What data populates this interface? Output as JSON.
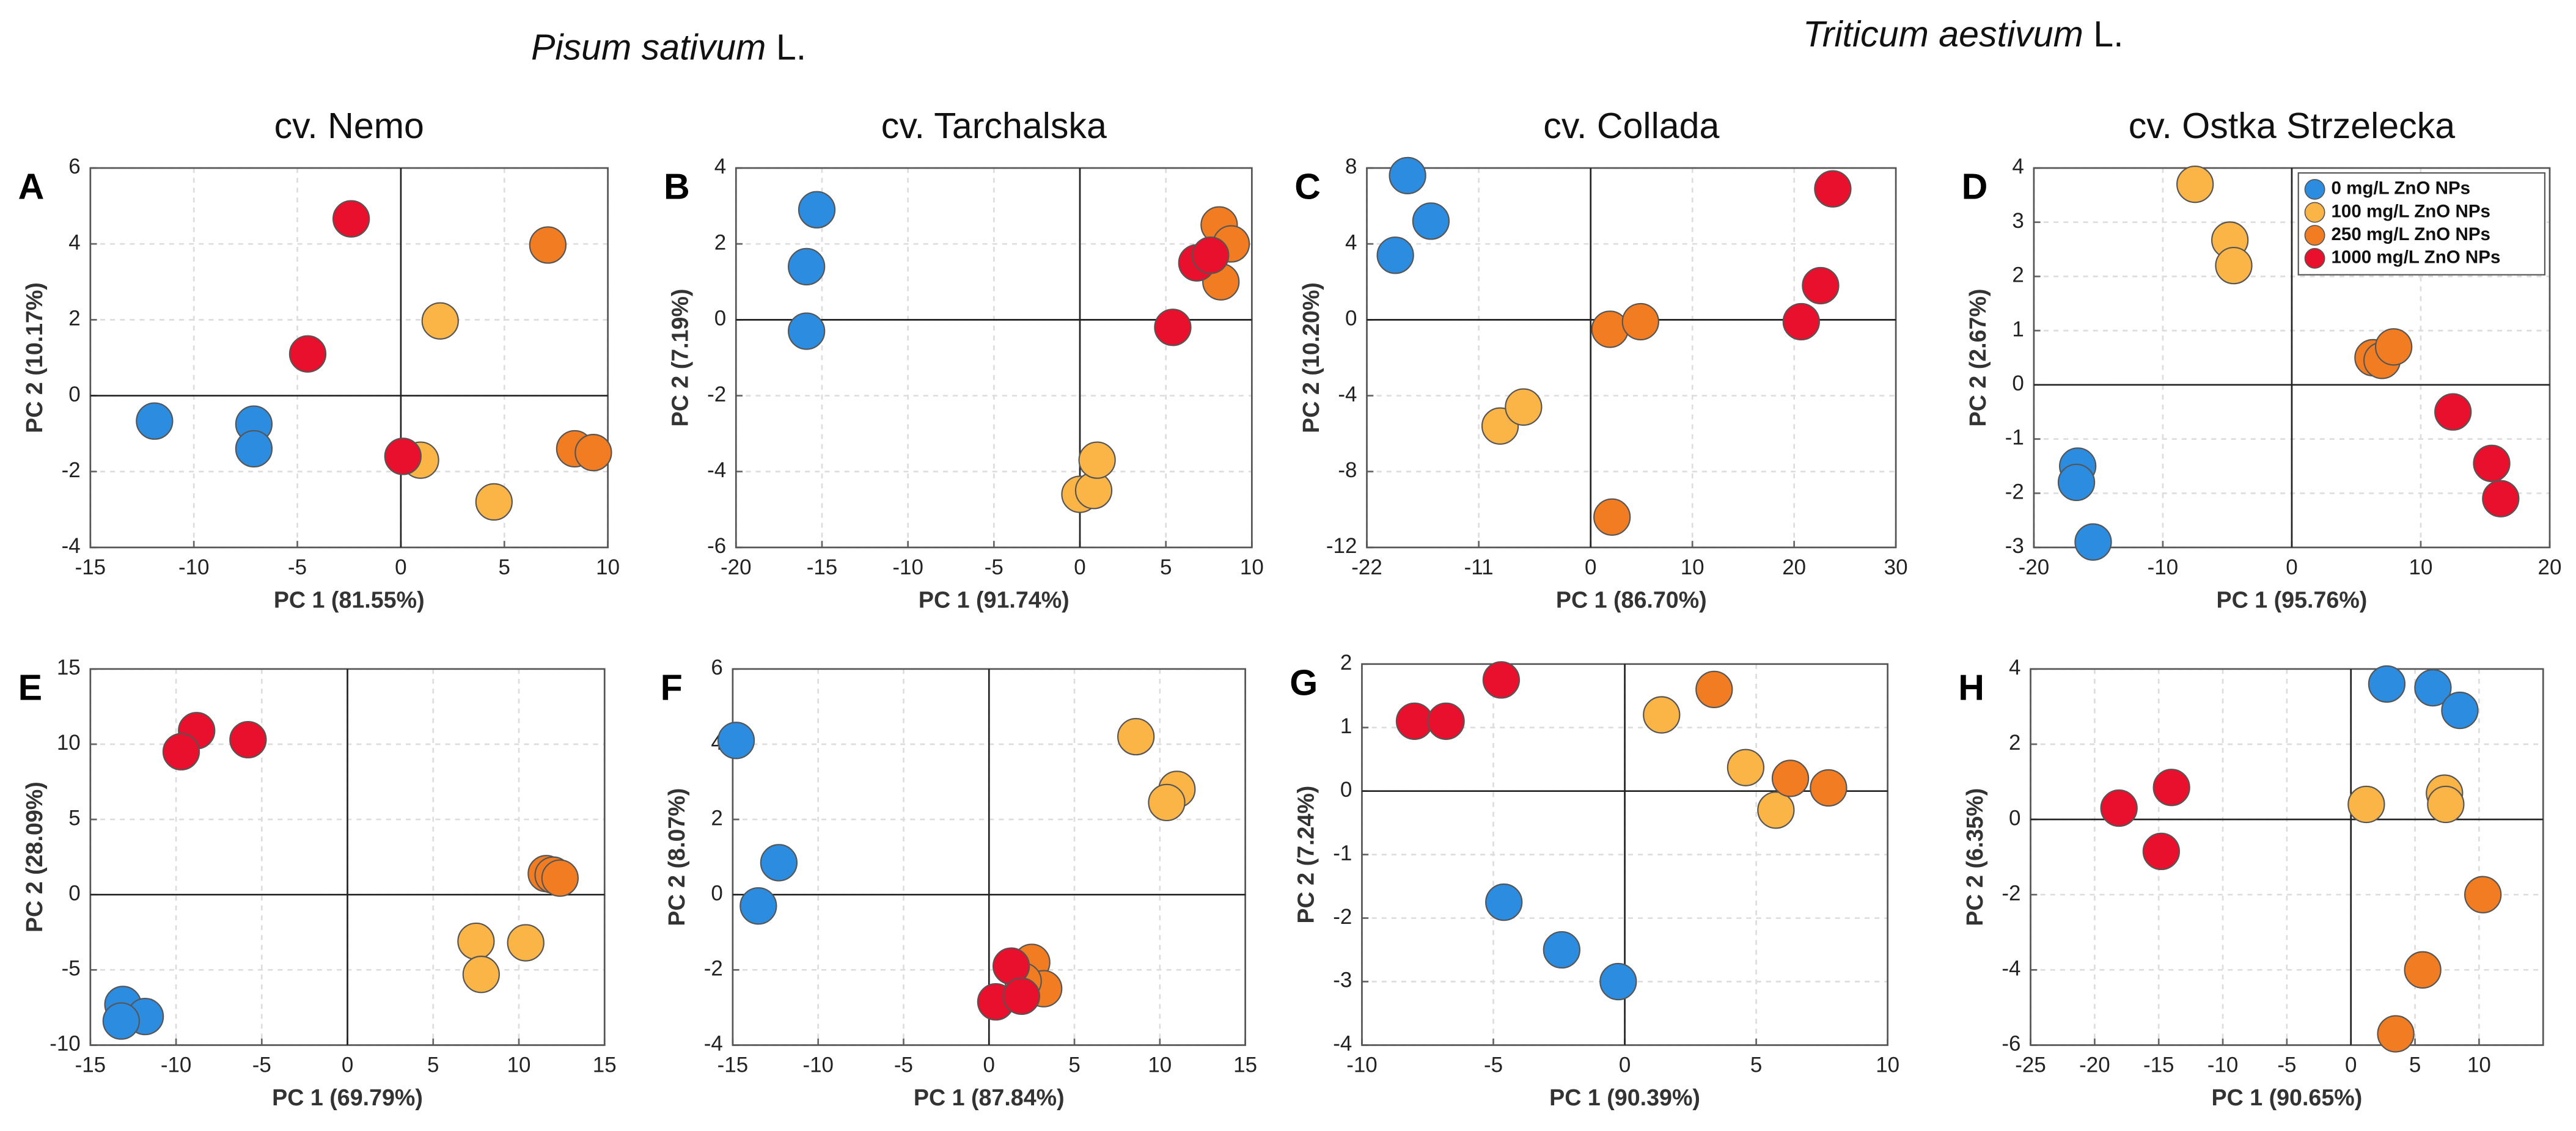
{
  "titles": [
    {
      "species": "Pisum sativum",
      "authority": "L."
    },
    {
      "species": "Triticum aestivum",
      "authority": "L."
    }
  ],
  "chart_data": [
    {
      "type": "scatter",
      "panel": "A",
      "title": "cv. Nemo",
      "xlabel": "PC 1 (81.55%)",
      "ylabel": "PC 2 (10.17%)",
      "xlim": [
        -15,
        10
      ],
      "ylim": [
        -4,
        6
      ],
      "xticks": [
        -15,
        -10,
        -5,
        0,
        5,
        10
      ],
      "yticks": [
        -4,
        -2,
        0,
        2,
        4,
        6
      ],
      "grid": true,
      "series": [
        {
          "color": "#2b8ce0",
          "x": [
            -11.9,
            -7.1,
            -7.1
          ],
          "values": [
            -0.67,
            -0.75,
            -1.4
          ]
        },
        {
          "color": "#fbb446",
          "x": [
            1.9,
            0.95,
            4.5
          ],
          "values": [
            1.97,
            -1.7,
            -2.8
          ]
        },
        {
          "color": "#f27c22",
          "x": [
            7.1,
            8.4,
            9.3
          ],
          "values": [
            3.97,
            -1.4,
            -1.5
          ]
        },
        {
          "color": "#e8102c",
          "x": [
            -2.4,
            -4.5,
            0.1
          ],
          "values": [
            4.66,
            1.1,
            -1.6
          ]
        }
      ]
    },
    {
      "type": "scatter",
      "panel": "B",
      "title": "cv. Tarchalska",
      "xlabel": "PC 1 (91.74%)",
      "ylabel": "PC 2 (7.19%)",
      "xlim": [
        -20,
        10
      ],
      "ylim": [
        -6,
        4
      ],
      "xticks": [
        -20,
        -15,
        -10,
        -5,
        0,
        5,
        10
      ],
      "yticks": [
        -6,
        -4,
        -2,
        0,
        2,
        4
      ],
      "grid": true,
      "series": [
        {
          "color": "#2b8ce0",
          "x": [
            -15.3,
            -15.9,
            -15.9
          ],
          "values": [
            2.9,
            1.4,
            -0.3
          ]
        },
        {
          "color": "#fbb446",
          "x": [
            0,
            0.8,
            1.0
          ],
          "values": [
            -4.6,
            -4.5,
            -3.7
          ]
        },
        {
          "color": "#f27c22",
          "x": [
            8.1,
            8.8,
            8.2
          ],
          "values": [
            2.5,
            2.0,
            1.0
          ]
        },
        {
          "color": "#e8102c",
          "x": [
            6.8,
            7.6,
            5.4
          ],
          "values": [
            1.5,
            1.7,
            -0.2
          ]
        }
      ]
    },
    {
      "type": "scatter",
      "panel": "C",
      "title": "cv. Collada",
      "xlabel": "PC 1 (86.70%)",
      "ylabel": "PC 2 (10.20%)",
      "xlim": [
        -22,
        30
      ],
      "ylim": [
        -12,
        8
      ],
      "xticks": [
        -22,
        -11,
        0,
        10,
        20,
        30
      ],
      "yticks": [
        -12,
        -8,
        -4,
        0,
        4,
        8
      ],
      "grid": true,
      "series": [
        {
          "color": "#2b8ce0",
          "x": [
            -18,
            -15.7,
            -19.2
          ],
          "values": [
            7.6,
            5.2,
            3.4
          ]
        },
        {
          "color": "#fbb446",
          "x": [
            -8.9,
            -6.6
          ],
          "values": [
            -5.6,
            -4.6
          ]
        },
        {
          "color": "#f27c22",
          "x": [
            1.9,
            4.9,
            2.1
          ],
          "values": [
            -0.5,
            -0.1,
            -10.4
          ]
        },
        {
          "color": "#e8102c",
          "x": [
            23.8,
            22.6,
            20.7
          ],
          "values": [
            6.9,
            1.8,
            -0.1
          ]
        }
      ]
    },
    {
      "type": "scatter",
      "panel": "D",
      "title": "cv. Ostka Strzelecka",
      "xlabel": "PC 1 (95.76%)",
      "ylabel": "PC 2 (2.67%)",
      "xlim": [
        -20,
        20
      ],
      "ylim": [
        -3,
        4
      ],
      "xticks": [
        -20,
        -10,
        0,
        10,
        20
      ],
      "yticks": [
        -3,
        -2,
        -1,
        0,
        1,
        2,
        3,
        4
      ],
      "grid": true,
      "legend": "upper right",
      "series": [
        {
          "name": "0 mg/L ZnO NPs",
          "color": "#2b8ce0",
          "x": [
            -16.6,
            -16.7,
            -15.4
          ],
          "values": [
            -1.5,
            -1.8,
            -2.9
          ]
        },
        {
          "name": "100 mg/L ZnO NPs",
          "color": "#fbb446",
          "x": [
            -7.5,
            -4.8,
            -4.5
          ],
          "values": [
            3.7,
            2.67,
            2.2
          ]
        },
        {
          "name": "250 mg/L ZnO NPs",
          "color": "#f27c22",
          "x": [
            6.3,
            7.0,
            7.9
          ],
          "values": [
            0.5,
            0.45,
            0.7
          ]
        },
        {
          "name": "1000 mg/L ZnO NPs",
          "color": "#e8102c",
          "x": [
            12.5,
            15.5,
            16.2
          ],
          "values": [
            -0.5,
            -1.45,
            -2.1
          ]
        }
      ]
    },
    {
      "type": "scatter",
      "panel": "E",
      "xlabel": "PC 1 (69.79%)",
      "ylabel": "PC 2 (28.09%)",
      "xlim": [
        -15,
        15
      ],
      "ylim": [
        -10,
        15
      ],
      "xticks": [
        -15,
        -10,
        -5,
        0,
        5,
        10,
        15
      ],
      "yticks": [
        -10,
        -5,
        0,
        5,
        10,
        15
      ],
      "grid": true,
      "series": [
        {
          "color": "#2b8ce0",
          "x": [
            -13.1,
            -11.8,
            -13.2
          ],
          "values": [
            -7.3,
            -8.1,
            -8.4
          ]
        },
        {
          "color": "#fbb446",
          "x": [
            7.5,
            10.4,
            7.8
          ],
          "values": [
            -3.1,
            -3.2,
            -5.3
          ]
        },
        {
          "color": "#f27c22",
          "x": [
            11.6,
            12.0,
            12.4
          ],
          "values": [
            1.4,
            1.3,
            1.1
          ]
        },
        {
          "color": "#e8102c",
          "x": [
            -8.8,
            -9.7,
            -5.8
          ],
          "values": [
            10.9,
            9.5,
            10.3
          ]
        }
      ]
    },
    {
      "type": "scatter",
      "panel": "F",
      "xlabel": "PC 1 (87.84%)",
      "ylabel": "PC 2 (8.07%)",
      "xlim": [
        -15,
        15
      ],
      "ylim": [
        -4,
        6
      ],
      "xticks": [
        -15,
        -10,
        -5,
        0,
        5,
        10,
        15
      ],
      "yticks": [
        -4,
        -2,
        0,
        2,
        4,
        6
      ],
      "grid": true,
      "series": [
        {
          "color": "#2b8ce0",
          "x": [
            -14.8,
            -12.3,
            -13.5
          ],
          "values": [
            4.1,
            0.85,
            -0.3
          ]
        },
        {
          "color": "#fbb446",
          "x": [
            8.6,
            11.0,
            10.4
          ],
          "values": [
            4.2,
            2.8,
            2.45
          ]
        },
        {
          "color": "#f27c22",
          "x": [
            2.5,
            3.2,
            2.0
          ],
          "values": [
            -1.8,
            -2.5,
            -2.3
          ]
        },
        {
          "color": "#e8102c",
          "x": [
            1.3,
            0.4,
            1.9
          ],
          "values": [
            -1.9,
            -2.85,
            -2.7
          ]
        }
      ]
    },
    {
      "type": "scatter",
      "panel": "G",
      "xlabel": "PC 1 (90.39%)",
      "ylabel": "PC 2 (7.24%)",
      "xlim": [
        -10,
        10
      ],
      "ylim": [
        -4,
        2
      ],
      "xticks": [
        -10,
        -5,
        0,
        5,
        10
      ],
      "yticks": [
        -4,
        -3,
        -2,
        -1,
        0,
        1,
        2
      ],
      "grid": true,
      "series": [
        {
          "color": "#2b8ce0",
          "x": [
            -4.6,
            -2.4,
            -0.25
          ],
          "values": [
            -1.75,
            -2.5,
            -3.0
          ]
        },
        {
          "color": "#fbb446",
          "x": [
            1.4,
            4.6,
            5.75
          ],
          "values": [
            1.2,
            0.37,
            -0.3
          ]
        },
        {
          "color": "#f27c22",
          "x": [
            3.4,
            6.3,
            7.75
          ],
          "values": [
            1.6,
            0.2,
            0.05
          ]
        },
        {
          "color": "#e8102c",
          "x": [
            -8.0,
            -6.8,
            -4.7
          ],
          "values": [
            1.1,
            1.1,
            1.75
          ]
        }
      ]
    },
    {
      "type": "scatter",
      "panel": "H",
      "xlabel": "PC 1 (90.65%)",
      "ylabel": "PC 2 (6.35%)",
      "xlim": [
        -25,
        15
      ],
      "ylim": [
        -6,
        4
      ],
      "xticks": [
        -25,
        -20,
        -15,
        -10,
        -5,
        0,
        5,
        10
      ],
      "yticks": [
        -6,
        -4,
        -2,
        0,
        2,
        4
      ],
      "grid": true,
      "series": [
        {
          "color": "#2b8ce0",
          "x": [
            2.8,
            6.4,
            8.5
          ],
          "values": [
            3.6,
            3.5,
            2.9
          ]
        },
        {
          "color": "#fbb446",
          "x": [
            1.2,
            7.3,
            7.4
          ],
          "values": [
            0.4,
            0.7,
            0.4
          ]
        },
        {
          "color": "#f27c22",
          "x": [
            10.3,
            5.6,
            3.5
          ],
          "values": [
            -2.0,
            -4.0,
            -5.7
          ]
        },
        {
          "color": "#e8102c",
          "x": [
            -18.1,
            -14.0,
            -14.8
          ],
          "values": [
            0.3,
            0.85,
            -0.85
          ]
        }
      ]
    }
  ]
}
